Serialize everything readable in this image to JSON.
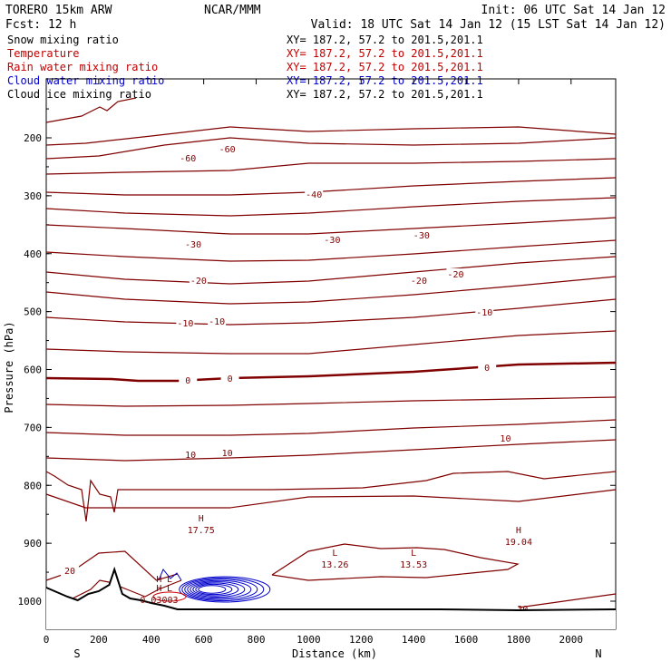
{
  "header": {
    "model": "TORERO  15km ARW",
    "org": "NCAR/MMM",
    "init": "Init: 06 UTC Sat 14 Jan 12",
    "fcst": "Fcst:   12 h",
    "valid": "Valid: 18 UTC Sat 14 Jan 12 (15 LST Sat 14 Jan 12)"
  },
  "legend": [
    {
      "label": "Snow mixing ratio",
      "xy": "XY= 187.2, 57.2 to 201.5,201.1",
      "color": "#000000"
    },
    {
      "label": "Temperature",
      "xy": "XY= 187.2, 57.2 to 201.5,201.1",
      "color": "#c00000"
    },
    {
      "label": "Rain water mixing ratio",
      "xy": "XY= 187.2, 57.2 to 201.5,201.1",
      "color": "#c00000"
    },
    {
      "label": "Cloud water mixing ratio",
      "xy": "XY= 187.2, 57.2 to 201.5,201.1",
      "color": "#0000cc"
    },
    {
      "label": "Cloud ice mixing ratio",
      "xy": "XY= 187.2, 57.2 to 201.5,201.1",
      "color": "#000000"
    }
  ],
  "chart_data": {
    "type": "line",
    "subtype": "vertical cross-section contour plot",
    "xlabel": "Distance (km)",
    "ylabel": "Pressure (hPa)",
    "xlim": [
      0,
      2170
    ],
    "ylim": [
      1050,
      100
    ],
    "x_ticks": [
      0,
      200,
      400,
      600,
      800,
      1000,
      1200,
      1400,
      1600,
      1800,
      2000
    ],
    "x_tick_labels": [
      "0",
      "200",
      "400",
      "600",
      "800",
      "1000",
      "1200",
      "1400",
      "1600",
      "1800",
      "2000"
    ],
    "y_ticks": [
      200,
      300,
      400,
      500,
      600,
      700,
      800,
      900,
      1000
    ],
    "y_tick_labels": [
      "200",
      "300",
      "400",
      "500",
      "600",
      "700",
      "800",
      "900",
      "1000"
    ],
    "end_labels": {
      "left": "S",
      "right": "N"
    },
    "temperature_color": "#800000",
    "isotherms": [
      {
        "points": [
          [
            0,
            160
          ],
          [
            150,
            158
          ],
          [
            400,
            150
          ],
          [
            700,
            140
          ],
          [
            1000,
            145
          ],
          [
            1400,
            142
          ],
          [
            1800,
            140
          ],
          [
            2170,
            148
          ]
        ]
      },
      {
        "points": [
          [
            0,
            175
          ],
          [
            200,
            172
          ],
          [
            450,
            160
          ],
          [
            700,
            152
          ],
          [
            1000,
            158
          ],
          [
            1400,
            160
          ],
          [
            1800,
            158
          ],
          [
            2170,
            152
          ]
        ],
        "label": "-60",
        "label_pos": [
          [
            540,
            175
          ],
          [
            690,
            165
          ]
        ]
      },
      {
        "points": [
          [
            0,
            192
          ],
          [
            300,
            190
          ],
          [
            700,
            188
          ],
          [
            1000,
            180
          ],
          [
            1400,
            180
          ],
          [
            1800,
            178
          ],
          [
            2170,
            175
          ]
        ]
      },
      {
        "points": [
          [
            0,
            212
          ],
          [
            300,
            215
          ],
          [
            700,
            215
          ],
          [
            1000,
            212
          ],
          [
            1400,
            205
          ],
          [
            1800,
            200
          ],
          [
            2170,
            196
          ]
        ],
        "label": "-40",
        "label_pos": [
          [
            1020,
            215
          ]
        ]
      },
      {
        "points": [
          [
            0,
            230
          ],
          [
            300,
            235
          ],
          [
            700,
            238
          ],
          [
            1000,
            235
          ],
          [
            1400,
            228
          ],
          [
            1800,
            222
          ],
          [
            2170,
            218
          ]
        ]
      },
      {
        "points": [
          [
            0,
            248
          ],
          [
            300,
            252
          ],
          [
            700,
            258
          ],
          [
            1000,
            258
          ],
          [
            1400,
            252
          ],
          [
            1800,
            246
          ],
          [
            2170,
            240
          ]
        ],
        "label": "-30",
        "label_pos": [
          [
            560,
            270
          ],
          [
            1090,
            265
          ],
          [
            1430,
            260
          ]
        ]
      },
      {
        "points": [
          [
            0,
            278
          ],
          [
            300,
            283
          ],
          [
            700,
            288
          ],
          [
            1000,
            287
          ],
          [
            1400,
            280
          ],
          [
            1800,
            272
          ],
          [
            2170,
            265
          ]
        ]
      },
      {
        "points": [
          [
            0,
            300
          ],
          [
            300,
            308
          ],
          [
            700,
            313
          ],
          [
            1000,
            310
          ],
          [
            1400,
            300
          ],
          [
            1800,
            290
          ],
          [
            2170,
            283
          ]
        ],
        "label": "-20",
        "label_pos": [
          [
            580,
            310
          ],
          [
            1420,
            310
          ],
          [
            1560,
            303
          ]
        ]
      },
      {
        "points": [
          [
            0,
            322
          ],
          [
            300,
            330
          ],
          [
            700,
            335
          ],
          [
            1000,
            333
          ],
          [
            1400,
            325
          ],
          [
            1800,
            315
          ],
          [
            2170,
            305
          ]
        ]
      },
      {
        "points": [
          [
            0,
            350
          ],
          [
            300,
            355
          ],
          [
            700,
            358
          ],
          [
            1000,
            356
          ],
          [
            1400,
            350
          ],
          [
            1800,
            340
          ],
          [
            2170,
            330
          ]
        ],
        "label": "-10",
        "label_pos": [
          [
            530,
            357
          ],
          [
            650,
            355
          ],
          [
            1670,
            345
          ]
        ]
      },
      {
        "points": [
          [
            0,
            385
          ],
          [
            300,
            388
          ],
          [
            700,
            390
          ],
          [
            1000,
            390
          ],
          [
            1400,
            380
          ],
          [
            1800,
            370
          ],
          [
            2170,
            365
          ]
        ]
      },
      {
        "points": [
          [
            0,
            417
          ],
          [
            250,
            418
          ],
          [
            350,
            420
          ],
          [
            500,
            420
          ],
          [
            700,
            417
          ],
          [
            1000,
            415
          ],
          [
            1400,
            410
          ],
          [
            1800,
            402
          ],
          [
            2170,
            400
          ]
        ],
        "label": "0",
        "label_pos": [
          [
            540,
            420
          ],
          [
            700,
            418
          ],
          [
            1680,
            406
          ]
        ],
        "bold": true
      },
      {
        "points": [
          [
            0,
            446
          ],
          [
            300,
            448
          ],
          [
            700,
            447
          ],
          [
            1000,
            445
          ],
          [
            1400,
            442
          ],
          [
            1800,
            440
          ],
          [
            2170,
            438
          ]
        ]
      },
      {
        "points": [
          [
            0,
            477
          ],
          [
            300,
            480
          ],
          [
            700,
            480
          ],
          [
            1000,
            478
          ],
          [
            1400,
            472
          ],
          [
            1800,
            468
          ],
          [
            2170,
            463
          ]
        ],
        "label": "10",
        "label_pos": [
          [
            550,
            502
          ],
          [
            690,
            500
          ],
          [
            1750,
            484
          ]
        ]
      },
      {
        "points": [
          [
            0,
            505
          ],
          [
            300,
            508
          ],
          [
            700,
            505
          ],
          [
            1000,
            502
          ],
          [
            1400,
            496
          ],
          [
            1800,
            490
          ],
          [
            2170,
            485
          ]
        ]
      },
      {
        "points": [
          [
            0,
            545
          ],
          [
            150,
            560
          ],
          [
            350,
            560
          ],
          [
            700,
            560
          ],
          [
            1000,
            548
          ],
          [
            1400,
            547
          ],
          [
            1800,
            553
          ],
          [
            2170,
            540
          ]
        ]
      },
      {
        "points": [
          [
            0,
            640
          ],
          [
            100,
            630
          ],
          [
            200,
            610
          ],
          [
            300,
            608
          ],
          [
            420,
            640
          ],
          [
            500,
            633
          ]
        ],
        "label": "20",
        "label_pos": [
          [
            90,
            630
          ],
          [
            1815,
            672
          ]
        ]
      },
      {
        "points": [
          [
            1800,
            670
          ],
          [
            2170,
            655
          ]
        ]
      }
    ],
    "extrema": [
      {
        "type": "H",
        "x": 590,
        "y": 575,
        "value": "17.75"
      },
      {
        "type": "L",
        "x": 1100,
        "y": 613,
        "value": "13.26"
      },
      {
        "type": "L",
        "x": 1400,
        "y": 613,
        "value": "13.53"
      },
      {
        "type": "H",
        "x": 1800,
        "y": 588,
        "value": "19.04"
      },
      {
        "type": "H",
        "x": 430,
        "y": 642,
        "value": ""
      },
      {
        "type": "L",
        "x": 470,
        "y": 642,
        "value": ""
      },
      {
        "type": "H",
        "x": 430,
        "y": 652,
        "value": "0.03003"
      },
      {
        "type": "L",
        "x": 470,
        "y": 652,
        "value": ""
      }
    ],
    "terrain": [
      [
        0,
        648
      ],
      [
        40,
        653
      ],
      [
        80,
        658
      ],
      [
        120,
        662
      ],
      [
        160,
        655
      ],
      [
        200,
        652
      ],
      [
        240,
        645
      ],
      [
        260,
        628
      ],
      [
        290,
        655
      ],
      [
        320,
        660
      ],
      [
        360,
        662
      ],
      [
        400,
        665
      ],
      [
        450,
        668
      ],
      [
        500,
        672
      ],
      [
        700,
        672
      ],
      [
        1000,
        672
      ],
      [
        1500,
        672
      ],
      [
        1800,
        673
      ],
      [
        2170,
        672
      ]
    ],
    "overlays": {
      "cloud_water": "blue contour cluster near x=430–800 km, 950–1000 hPa",
      "rain_water": "red contour near x=430–470 km, 990 hPa"
    }
  }
}
